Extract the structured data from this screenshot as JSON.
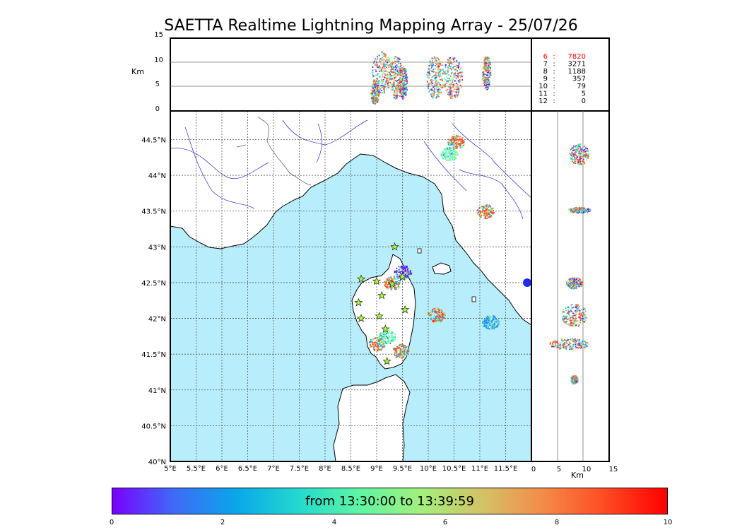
{
  "title": "SAETTA Realtime Lightning Mapping Array - 25/07/26",
  "altitude_panel": {
    "unit": "Km",
    "y_ticks": [
      "15",
      "10",
      "5",
      "0"
    ]
  },
  "counts": [
    {
      "level": "6",
      "sep": ":",
      "count": "7820",
      "color": "#ff0000"
    },
    {
      "level": "7",
      "sep": ":",
      "count": "3271",
      "color": "#000000"
    },
    {
      "level": "8",
      "sep": ":",
      "count": "1188",
      "color": "#000000"
    },
    {
      "level": "9",
      "sep": ":",
      "count": "357",
      "color": "#000000"
    },
    {
      "level": "10",
      "sep": ":",
      "count": "79",
      "color": "#000000"
    },
    {
      "level": "11",
      "sep": ":",
      "count": "5",
      "color": "#000000"
    },
    {
      "level": "12",
      "sep": ":",
      "count": "0",
      "color": "#000000"
    }
  ],
  "map": {
    "lon_ticks": [
      "5°E",
      "5.5°E",
      "6°E",
      "6.5°E",
      "7°E",
      "7.5°E",
      "8°E",
      "8.5°E",
      "9°E",
      "9.5°E",
      "10°E",
      "10.5°E",
      "11°E",
      "11.5°E"
    ],
    "lat_ticks": [
      "40°N",
      "40.5°N",
      "41°N",
      "41.5°N",
      "42°N",
      "42.5°N",
      "43°N",
      "43.5°N",
      "44°N",
      "44.5°N"
    ],
    "sea_color": "#b8eefb"
  },
  "side_panel": {
    "unit": "Km",
    "x_ticks": [
      "0",
      "5",
      "10",
      "15"
    ]
  },
  "colorbar": {
    "label": "from 13:30:00 to 13:39:59",
    "ticks": [
      "0",
      "2",
      "4",
      "6",
      "8",
      "10"
    ]
  },
  "lightning_clusters_latlon": [
    {
      "lon": 10.53,
      "lat": 44.47,
      "color": "#ff5522"
    },
    {
      "lon": 10.4,
      "lat": 44.3,
      "color": "#66ffaa"
    },
    {
      "lon": 11.1,
      "lat": 43.5,
      "color": "#ff5522"
    },
    {
      "lon": 9.3,
      "lat": 42.5,
      "color": "#ff5522"
    },
    {
      "lon": 9.5,
      "lat": 42.65,
      "color": "#7a00ff"
    },
    {
      "lon": 10.15,
      "lat": 42.05,
      "color": "#ff4422"
    },
    {
      "lon": 11.2,
      "lat": 41.95,
      "color": "#1e90ff"
    },
    {
      "lon": 9.0,
      "lat": 41.65,
      "color": "#ff5522"
    },
    {
      "lon": 9.45,
      "lat": 41.55,
      "color": "#ff5522"
    },
    {
      "lon": 9.2,
      "lat": 41.75,
      "color": "#66ffaa"
    }
  ],
  "stations_latlon": [
    {
      "lon": 9.35,
      "lat": 43.0
    },
    {
      "lon": 8.7,
      "lat": 42.55
    },
    {
      "lon": 9.0,
      "lat": 42.52
    },
    {
      "lon": 9.3,
      "lat": 42.48
    },
    {
      "lon": 9.5,
      "lat": 42.58
    },
    {
      "lon": 9.1,
      "lat": 42.32
    },
    {
      "lon": 8.65,
      "lat": 42.22
    },
    {
      "lon": 8.7,
      "lat": 42.0
    },
    {
      "lon": 9.05,
      "lat": 42.03
    },
    {
      "lon": 9.55,
      "lat": 42.12
    },
    {
      "lon": 9.17,
      "lat": 41.85
    },
    {
      "lon": 9.2,
      "lat": 41.4
    }
  ]
}
